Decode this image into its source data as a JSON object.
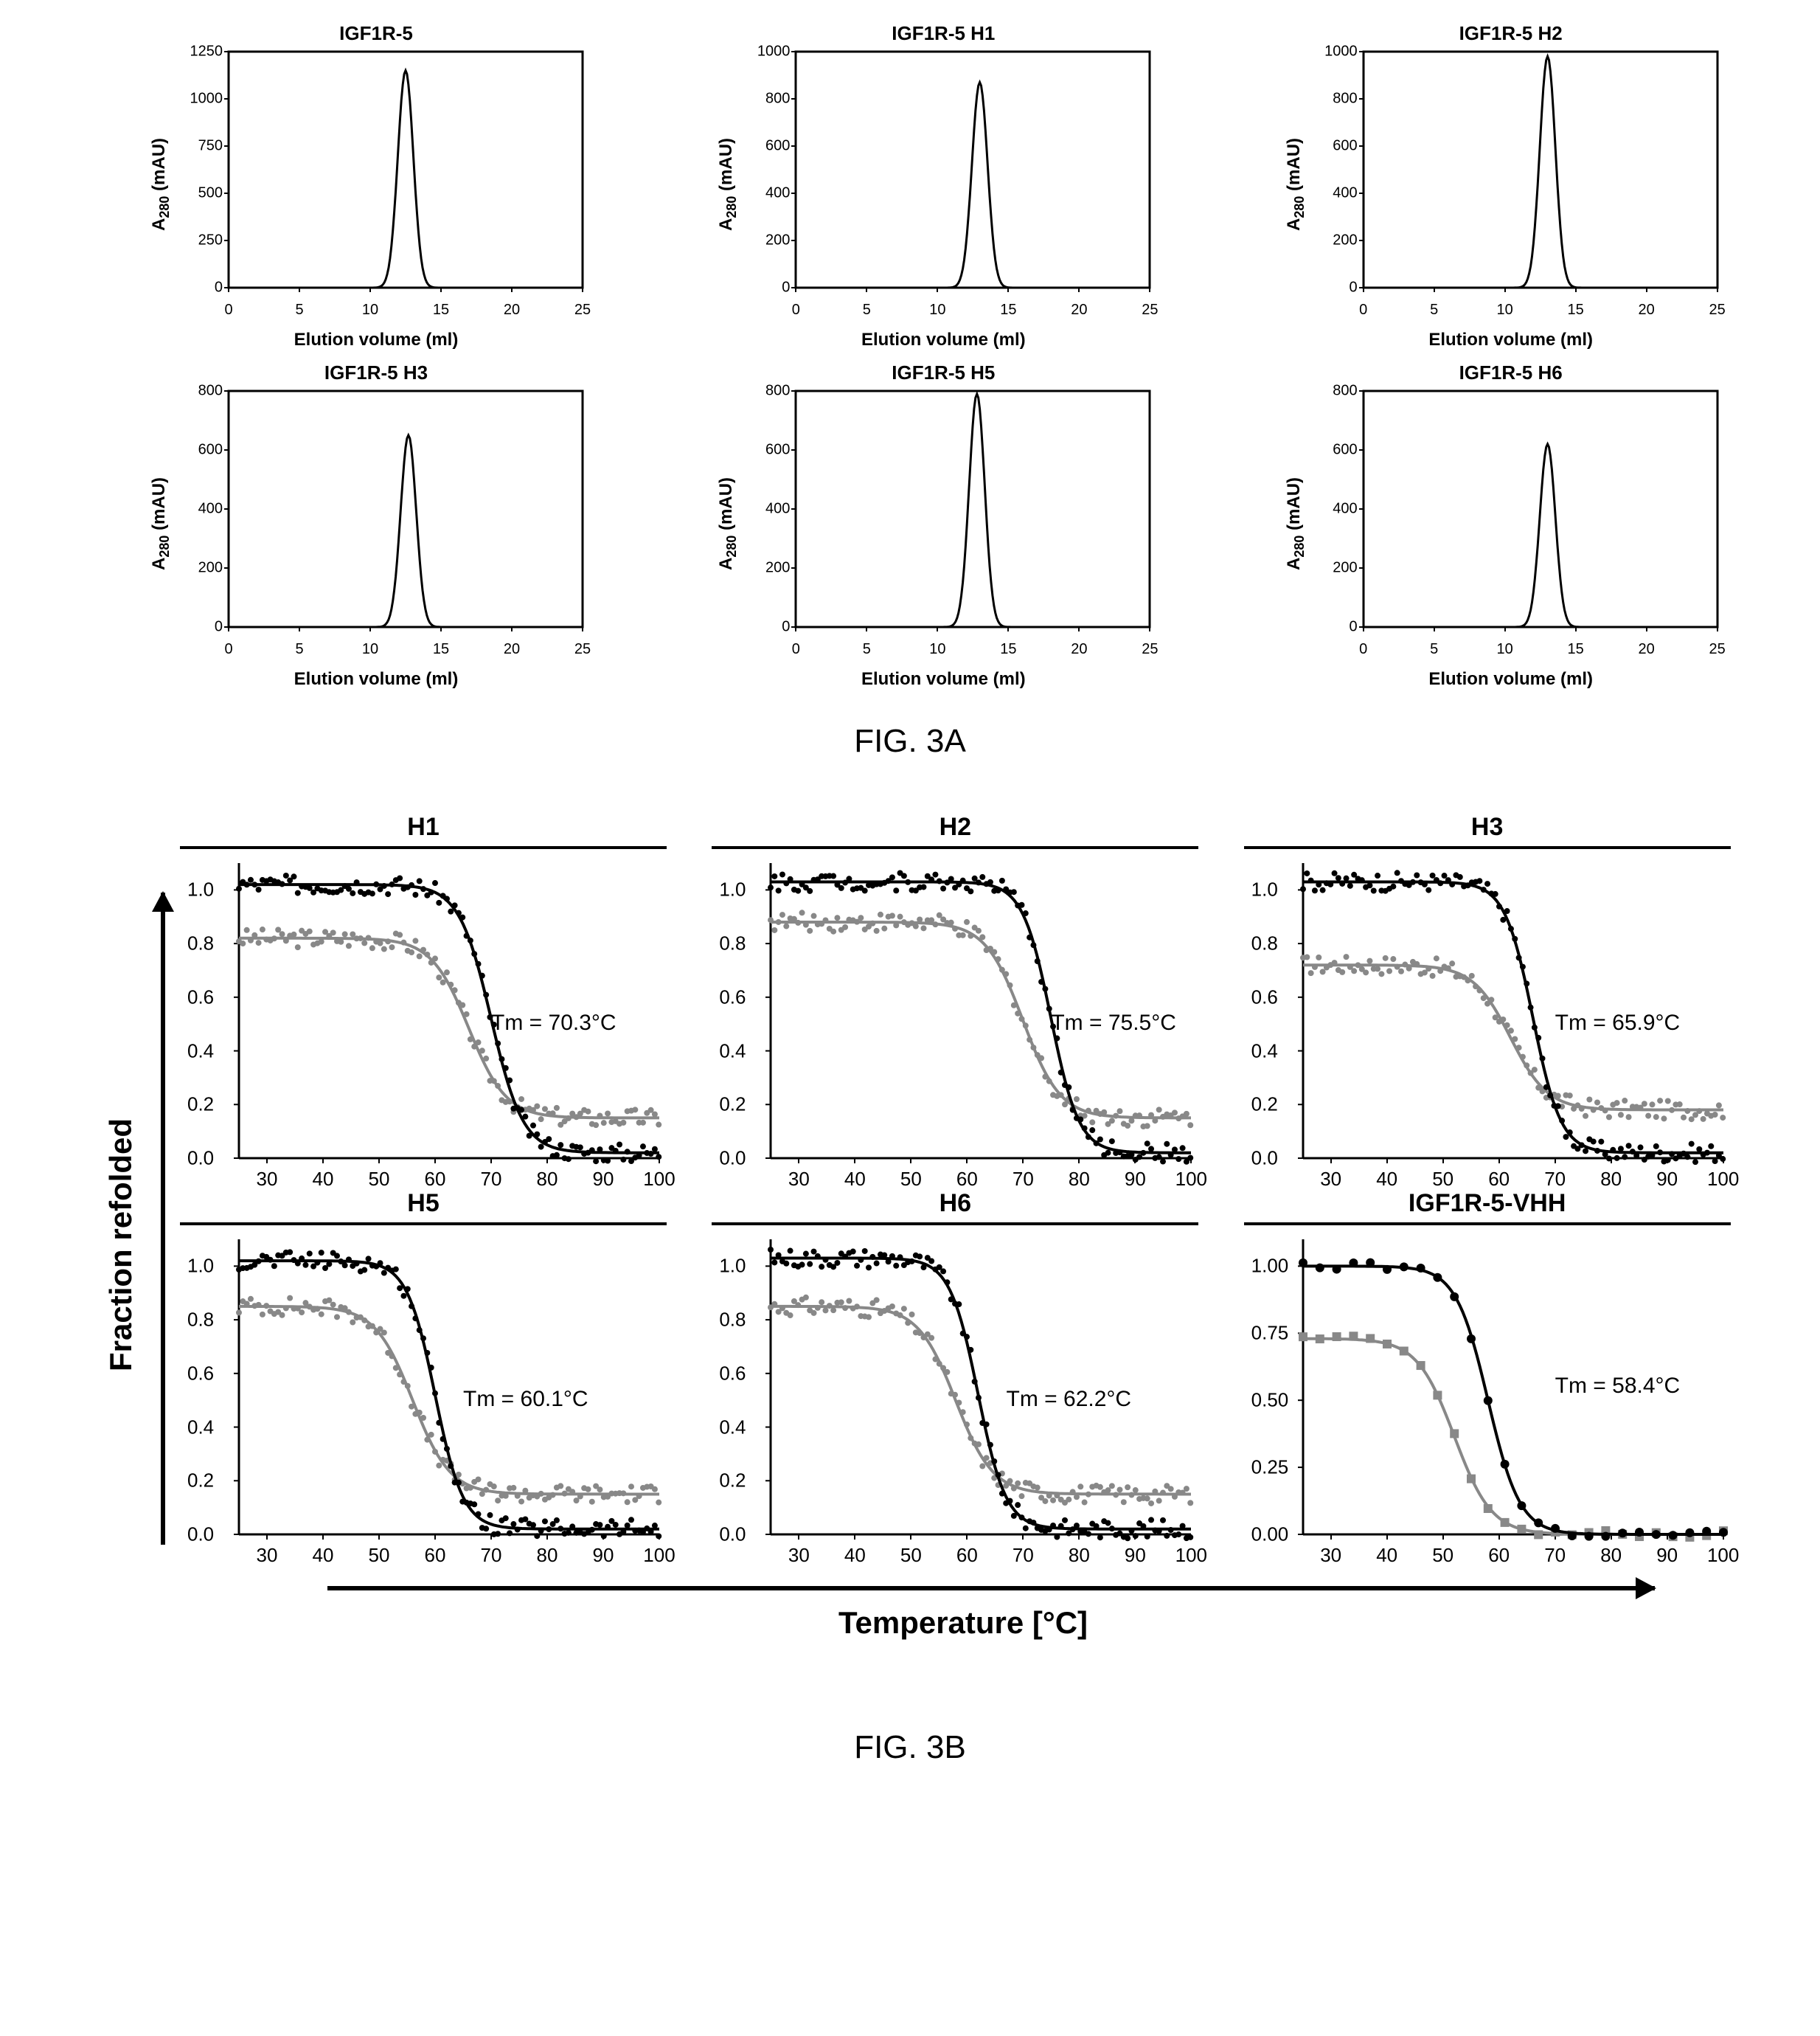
{
  "figA": {
    "caption": "FIG. 3A",
    "xlabel": "Elution volume (ml)",
    "ylabel_html": "A<sub>280</sub> (mAU)",
    "xlim": [
      0,
      25
    ],
    "xticks": [
      0,
      5,
      10,
      15,
      20,
      25
    ],
    "axis_color": "#000000",
    "line_color": "#000000",
    "line_width": 3,
    "panels": [
      {
        "title": "IGF1R-5",
        "ymax": 1250,
        "ytick_step": 250,
        "peak_x": 12.5,
        "peak_y": 1150
      },
      {
        "title": "IGF1R-5  H1",
        "ymax": 1000,
        "ytick_step": 200,
        "peak_x": 13.0,
        "peak_y": 870
      },
      {
        "title": "IGF1R-5  H2",
        "ymax": 1000,
        "ytick_step": 200,
        "peak_x": 13.0,
        "peak_y": 980
      },
      {
        "title": "IGF1R-5  H3",
        "ymax": 800,
        "ytick_step": 200,
        "peak_x": 12.7,
        "peak_y": 650
      },
      {
        "title": "IGF1R-5  H5",
        "ymax": 800,
        "ytick_step": 200,
        "peak_x": 12.8,
        "peak_y": 790
      },
      {
        "title": "IGF1R-5  H6",
        "ymax": 800,
        "ytick_step": 200,
        "peak_x": 13.0,
        "peak_y": 620
      }
    ]
  },
  "figB": {
    "caption": "FIG. 3B",
    "ylabel": "Fraction refolded",
    "xlabel": "Temperature [°C]",
    "xlim": [
      25,
      100
    ],
    "ylim": [
      0.0,
      1.1
    ],
    "xticks": [
      30,
      40,
      50,
      60,
      70,
      80,
      90,
      100
    ],
    "axis_color": "#000000",
    "series_colors": {
      "primary": "#000000",
      "secondary": "#888888"
    },
    "marker_size": 4,
    "line_width": 4,
    "panels": [
      {
        "hdr": "H1",
        "tm_label": "Tm = 70.3°C",
        "tm_pos": [
          70,
          0.55
        ],
        "primary": {
          "hi": 1.02,
          "lo": 0.02,
          "mid": 70,
          "k": 0.35
        },
        "secondary": {
          "hi": 0.82,
          "lo": 0.15,
          "mid": 66,
          "k": 0.3
        },
        "yticks": [
          0.0,
          0.2,
          0.4,
          0.6,
          0.8,
          1.0
        ]
      },
      {
        "hdr": "H2",
        "tm_label": "Tm = 75.5°C",
        "tm_pos": [
          75,
          0.55
        ],
        "primary": {
          "hi": 1.03,
          "lo": 0.02,
          "mid": 75,
          "k": 0.4
        },
        "secondary": {
          "hi": 0.88,
          "lo": 0.15,
          "mid": 70,
          "k": 0.3
        },
        "yticks": [
          0.0,
          0.2,
          0.4,
          0.6,
          0.8,
          1.0
        ]
      },
      {
        "hdr": "H3",
        "tm_label": "Tm = 65.9°C",
        "tm_pos": [
          70,
          0.55
        ],
        "primary": {
          "hi": 1.03,
          "lo": 0.02,
          "mid": 66,
          "k": 0.4
        },
        "secondary": {
          "hi": 0.72,
          "lo": 0.18,
          "mid": 62,
          "k": 0.3
        },
        "yticks": [
          0.0,
          0.2,
          0.4,
          0.6,
          0.8,
          1.0
        ]
      },
      {
        "hdr": "H5",
        "tm_label": "Tm = 60.1°C",
        "tm_pos": [
          65,
          0.55
        ],
        "primary": {
          "hi": 1.02,
          "lo": 0.02,
          "mid": 60,
          "k": 0.4
        },
        "secondary": {
          "hi": 0.85,
          "lo": 0.15,
          "mid": 56,
          "k": 0.3
        },
        "yticks": [
          0.0,
          0.2,
          0.4,
          0.6,
          0.8,
          1.0
        ]
      },
      {
        "hdr": "H6",
        "tm_label": "Tm = 62.2°C",
        "tm_pos": [
          67,
          0.55
        ],
        "primary": {
          "hi": 1.03,
          "lo": 0.02,
          "mid": 62,
          "k": 0.4
        },
        "secondary": {
          "hi": 0.85,
          "lo": 0.15,
          "mid": 58,
          "k": 0.3
        },
        "yticks": [
          0.0,
          0.2,
          0.4,
          0.6,
          0.8,
          1.0
        ]
      },
      {
        "hdr": "IGF1R-5-VHH",
        "tm_label": "Tm = 58.4°C",
        "tm_pos": [
          70,
          0.6
        ],
        "primary": {
          "hi": 1.0,
          "lo": 0.0,
          "mid": 58,
          "k": 0.35
        },
        "secondary": {
          "hi": 0.73,
          "lo": 0.0,
          "mid": 52,
          "k": 0.3
        },
        "yticks": [
          0.0,
          0.25,
          0.5,
          0.75,
          1.0
        ],
        "sparse": true
      }
    ]
  }
}
